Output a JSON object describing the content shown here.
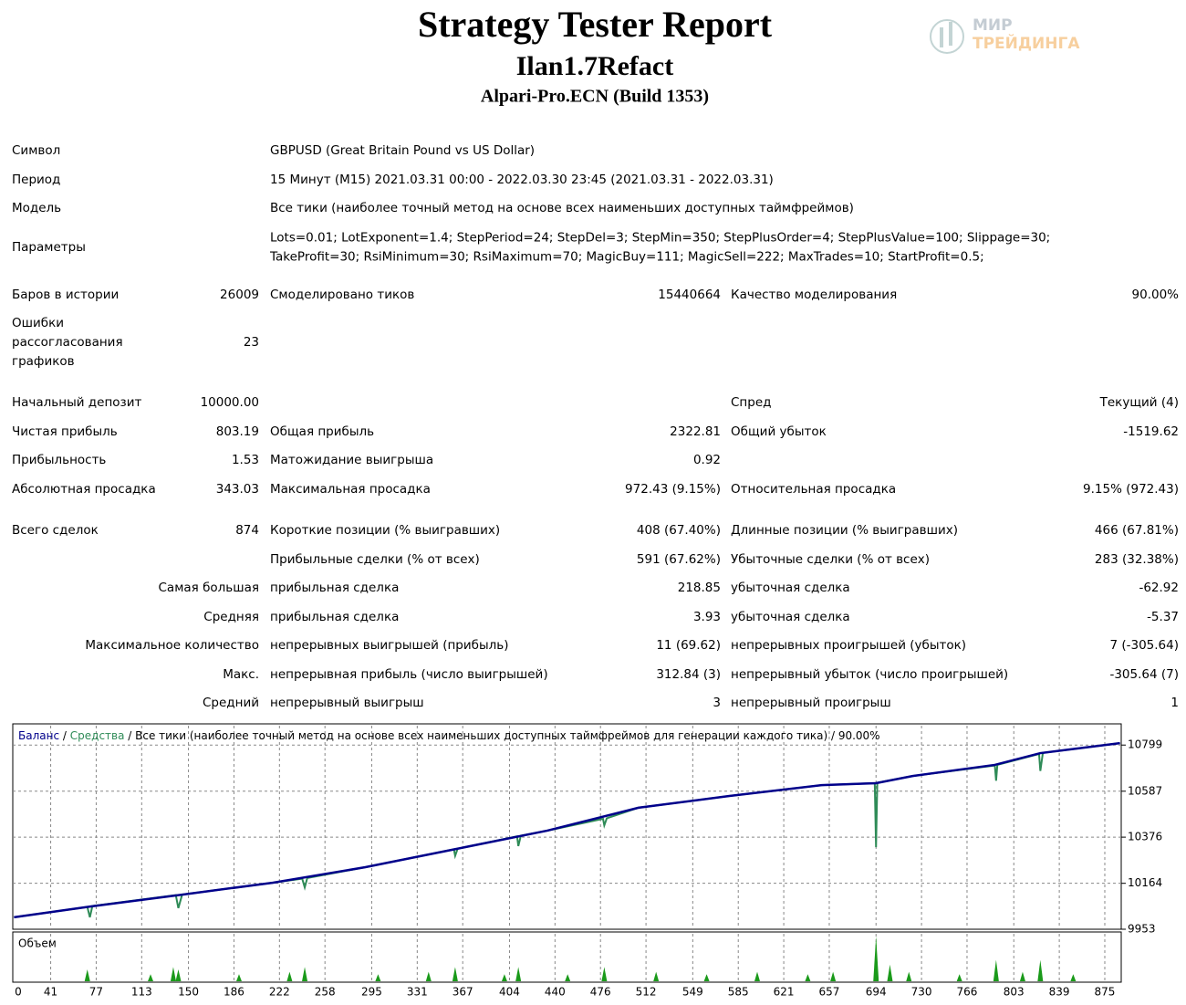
{
  "header": {
    "title": "Strategy Tester Report",
    "subtitle": "Ilan1.7Refact",
    "broker": "Alpari-Pro.ECN (Build 1353)"
  },
  "logo": {
    "line1": "МИР",
    "line2": "ТРЕЙДИНГА"
  },
  "rows": [
    {
      "l1": "Символ",
      "wide": "GBPUSD (Great Britain Pound vs US Dollar)"
    },
    {
      "l1": "Период",
      "wide": "15 Минут (M15) 2021.03.31 00:00 - 2022.03.30 23:45 (2021.03.31 - 2022.03.31)"
    },
    {
      "l1": "Модель",
      "wide": "Все тики (наиболее точный метод на основе всех наименьших доступных таймфреймов)"
    },
    {
      "l1": "Параметры",
      "wide": [
        "Lots=0.01; LotExponent=1.4; StepPeriod=24; StepDel=3; StepMin=350; StepPlusOrder=4; StepPlusValue=100; Slippage=30;",
        "TakeProfit=30; RsiMinimum=30; RsiMaximum=70; MagicBuy=111; MagicSell=222; MaxTrades=10; StartProfit=0.5;"
      ]
    },
    {
      "l1": "Баров в истории",
      "v1": "26009",
      "l2": "Смоделировано тиков",
      "v2": "15440664",
      "l3": "Качество моделирования",
      "v3": "90.00%"
    },
    {
      "l1": [
        "Ошибки",
        "рассогласования",
        "графиков"
      ],
      "v1": "23"
    },
    {
      "l1": "Начальный депозит",
      "v1": "10000.00",
      "l3": "Спред",
      "v3": "Текущий (4)"
    },
    {
      "l1": "Чистая прибыль",
      "v1": "803.19",
      "l2": "Общая прибыль",
      "v2": "2322.81",
      "l3": "Общий убыток",
      "v3": "-1519.62"
    },
    {
      "l1": "Прибыльность",
      "v1": "1.53",
      "l2": "Матожидание выигрыша",
      "v2": "0.92"
    },
    {
      "l1": "Абсолютная просадка",
      "v1": "343.03",
      "l2": "Максимальная просадка",
      "v2": "972.43 (9.15%)",
      "l3": "Относительная просадка",
      "v3": "9.15% (972.43)"
    },
    {
      "l1": "Всего сделок",
      "v1": "874",
      "l2": "Короткие позиции (% выигравших)",
      "v2": "408 (67.40%)",
      "l3": "Длинные позиции (% выигравших)",
      "v3": "466 (67.81%)"
    },
    {
      "l2": "Прибыльные сделки (% от всех)",
      "v2": "591 (67.62%)",
      "l3": "Убыточные сделки (% от всех)",
      "v3": "283 (32.38%)"
    },
    {
      "v1": "Самая большая",
      "l2": "прибыльная сделка",
      "v2": "218.85",
      "l3": "убыточная сделка",
      "v3": "-62.92"
    },
    {
      "v1": "Средняя",
      "l2": "прибыльная сделка",
      "v2": "3.93",
      "l3": "убыточная сделка",
      "v3": "-5.37"
    },
    {
      "v1": "Максимальное количество",
      "l2": "непрерывных выигрышей (прибыль)",
      "v2": "11 (69.62)",
      "l3": "непрерывных проигрышей (убыток)",
      "v3": "7 (-305.64)"
    },
    {
      "v1": "Макс.",
      "l2": "непрерывная прибыль (число выигрышей)",
      "v2": "312.84 (3)",
      "l3": "непрерывный убыток (число проигрышей)",
      "v3": "-305.64 (7)"
    },
    {
      "v1": "Средний",
      "l2": "непрерывный выигрыш",
      "v2": "3",
      "l3": "непрерывный проигрыш",
      "v3": "1"
    }
  ],
  "chart": {
    "type": "line",
    "legend_separator": "/",
    "legend_note": "/ Все тики (наиболее точный метод на основе всех наименьших доступных таймфреймов для генерации каждого тика) / 90.00%",
    "volume_label": "Объем",
    "xlim": [
      11,
      888
    ],
    "ylim": [
      9953,
      10888
    ],
    "xticks": [
      0,
      41,
      77,
      113,
      150,
      186,
      222,
      258,
      295,
      331,
      367,
      404,
      440,
      476,
      512,
      549,
      585,
      621,
      657,
      694,
      730,
      766,
      803,
      839,
      875
    ],
    "yticks": [
      10799,
      10587,
      10376,
      10164,
      9953
    ],
    "grid": true,
    "series": [
      {
        "name": "Средства",
        "color": "#2e8b57",
        "x": [
          12,
          70,
          72,
          74,
          140,
          142,
          145,
          217,
          240,
          242,
          244,
          290,
          360,
          361,
          363,
          410,
          411,
          413,
          434,
          478,
          479,
          481,
          506,
          578,
          651,
          693,
          694,
          695,
          723,
          788,
          789,
          790,
          823,
          824,
          826,
          887
        ],
        "values": [
          10008,
          10055,
          10008,
          10060,
          10110,
          10050,
          10112,
          10167,
          10185,
          10145,
          10188,
          10238,
          10320,
          10290,
          10323,
          10380,
          10335,
          10383,
          10406,
          10460,
          10430,
          10463,
          10511,
          10565,
          10615,
          10624,
          10330,
          10626,
          10657,
          10705,
          10635,
          10708,
          10758,
          10680,
          10763,
          10808
        ]
      },
      {
        "name": "Баланс",
        "color": "#00008b",
        "x": [
          12,
          73,
          145,
          217,
          290,
          362,
          434,
          506,
          578,
          651,
          694,
          723,
          788,
          824,
          887
        ],
        "values": [
          10008,
          10058,
          10112,
          10167,
          10238,
          10322,
          10406,
          10511,
          10565,
          10615,
          10624,
          10657,
          10708,
          10762,
          10808
        ]
      }
    ],
    "volume": {
      "color": "#1a9a1a",
      "ylim": [
        0,
        1
      ],
      "x": [
        70,
        120,
        138,
        142,
        190,
        230,
        242,
        300,
        340,
        361,
        400,
        411,
        450,
        479,
        520,
        560,
        600,
        640,
        660,
        694,
        705,
        720,
        760,
        789,
        810,
        824,
        850
      ],
      "values": [
        0.25,
        0.15,
        0.3,
        0.25,
        0.15,
        0.2,
        0.3,
        0.15,
        0.2,
        0.3,
        0.15,
        0.3,
        0.15,
        0.3,
        0.2,
        0.15,
        0.2,
        0.15,
        0.2,
        0.95,
        0.35,
        0.2,
        0.15,
        0.45,
        0.2,
        0.45,
        0.15
      ]
    }
  }
}
